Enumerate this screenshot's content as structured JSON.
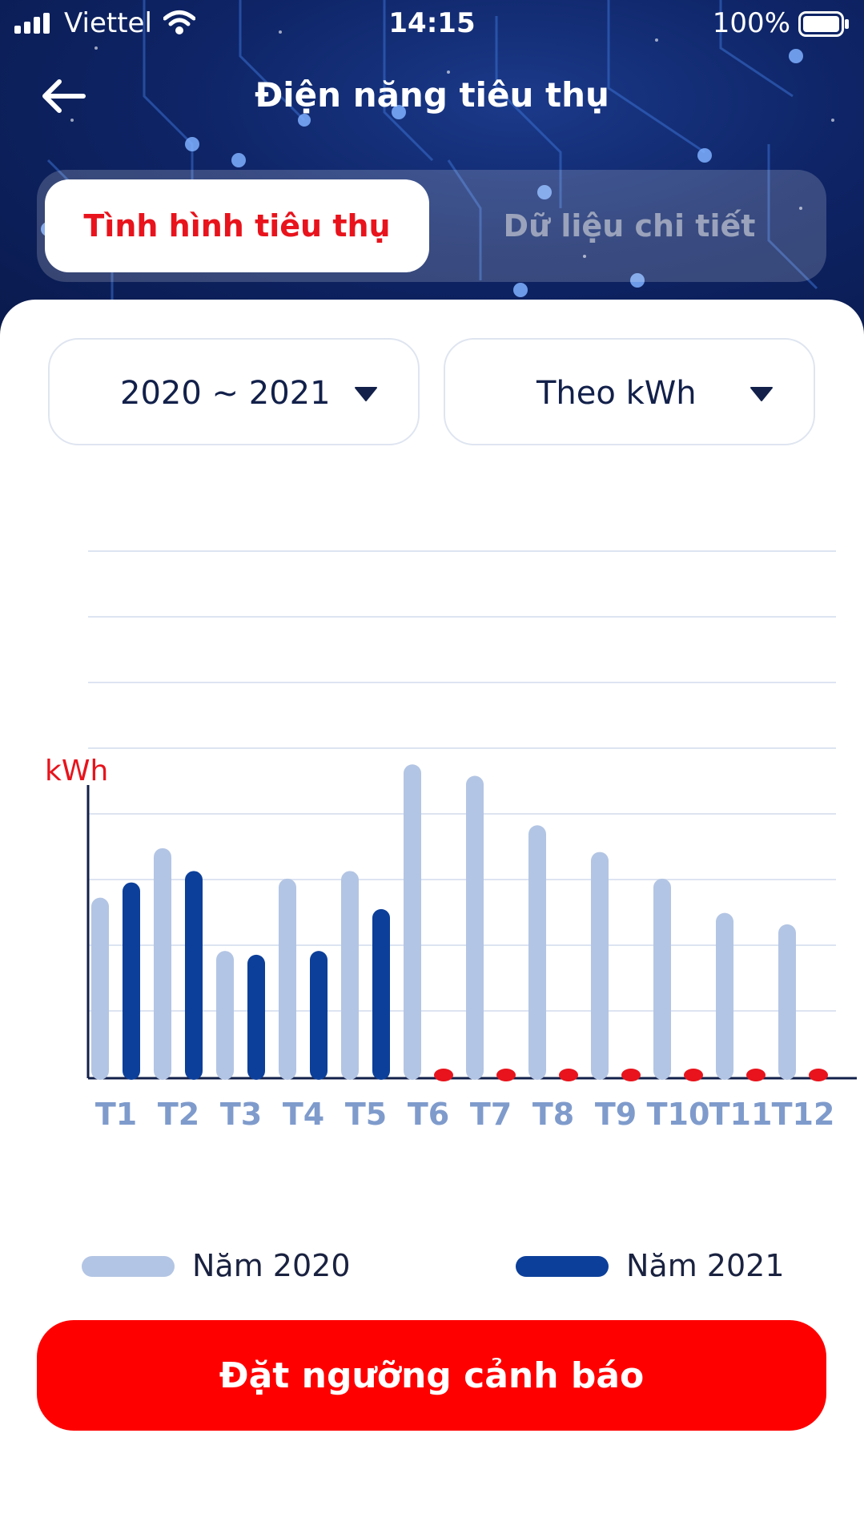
{
  "status_bar": {
    "carrier": "Viettel",
    "time": "14:15",
    "battery": "100%"
  },
  "nav": {
    "title": "Điện năng tiêu thụ",
    "back_icon": "arrow-left-icon"
  },
  "tabs": [
    {
      "label": "Tình hình tiêu thụ",
      "active": true
    },
    {
      "label": "Dữ liệu chi tiết",
      "active": false
    }
  ],
  "filters": {
    "period": "2020 ~ 2021",
    "unit": "Theo kWh"
  },
  "colors": {
    "accent_red": "#e8131c",
    "button_red": "#fe0000",
    "series_2020": "#b3c5e4",
    "series_2021": "#0c3f9a",
    "header_blue": "#0e2466"
  },
  "chart_data": {
    "type": "bar",
    "ylabel": "kWh",
    "categories": [
      "T1",
      "T2",
      "T3",
      "T4",
      "T5",
      "T6",
      "T7",
      "T8",
      "T9",
      "T10",
      "T11",
      "T12"
    ],
    "series": [
      {
        "name": "Năm 2020",
        "values": [
          4.7,
          6.0,
          3.3,
          5.2,
          5.4,
          8.2,
          7.9,
          6.6,
          5.9,
          5.2,
          4.3,
          4.0
        ]
      },
      {
        "name": "Năm 2021",
        "values": [
          5.1,
          5.4,
          3.2,
          3.3,
          4.4,
          0,
          0,
          0,
          0,
          0,
          0,
          0
        ]
      }
    ],
    "ylim": [
      0,
      8.5
    ],
    "y_tick_labels": false,
    "grid": true,
    "zero_markers_color": "#e8131c",
    "legend": "bottom"
  },
  "legend": {
    "item_2020": "Năm 2020",
    "item_2021": "Năm 2021"
  },
  "actions": {
    "set_threshold": "Đặt ngưỡng cảnh báo"
  }
}
